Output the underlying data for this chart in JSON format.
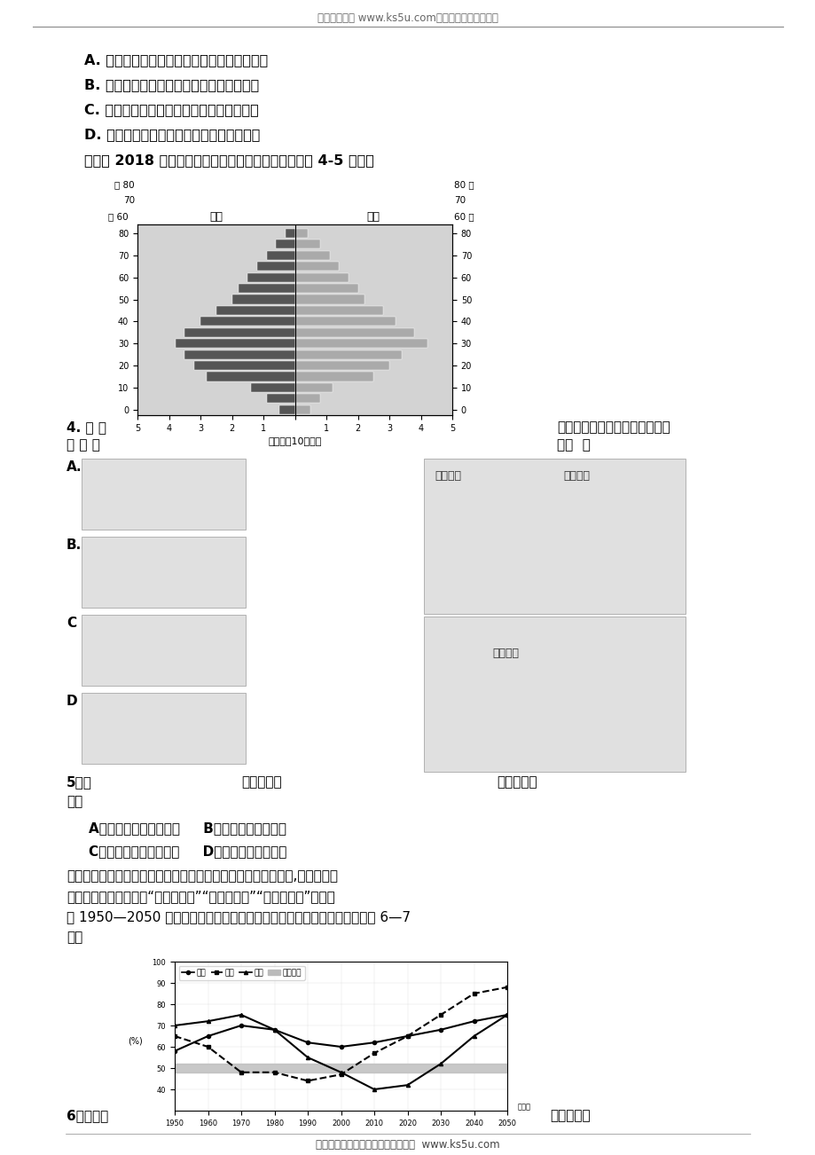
{
  "header_text": "高考资源网（ www.ks5u.com），您身边的高考专家",
  "footer_text": "欢迎广大教师踊跃来稿，稿酬丰厚。  www.ks5u.com",
  "options_ABCD": [
    "A. 山顶主要因气温高，蒸发量大，为灌木草原",
    "B. 坡面主要因坡度大，土层薄，为疏林草原",
    "C. 谷底主要因水土条件好，以中生乔木为主",
    "D. 光照差异导致谷底到山顶的植被分布差异"
  ],
  "pyramid_title": "下面为 2018 年天津市人口金字塔图，读图，完成下面 4-5 各题。",
  "pyramid_male_label": "男性",
  "pyramid_female_label": "女性",
  "pyramid_xlabel": "人口数（10万人）",
  "pyramid_age_ticks": [
    0,
    10,
    20,
    30,
    40,
    50,
    60,
    70,
    80
  ],
  "pyramid_x_ticks": [
    "5",
    "4",
    "3",
    "2",
    "1",
    "",
    "1",
    "2",
    "3",
    "4",
    "5"
  ],
  "pyramid_male_values": [
    0.5,
    0.9,
    1.4,
    2.8,
    3.2,
    3.5,
    3.8,
    3.5,
    3.0,
    2.5,
    2.0,
    1.8,
    1.5,
    1.2,
    0.9,
    0.6,
    0.3
  ],
  "pyramid_female_values": [
    0.5,
    0.8,
    1.2,
    2.5,
    3.0,
    3.4,
    4.2,
    3.8,
    3.2,
    2.8,
    2.2,
    2.0,
    1.7,
    1.4,
    1.1,
    0.8,
    0.4
  ],
  "q4_left1": "4. 材 料",
  "q4_left2": "相 符 的",
  "q4_right1": "体现的人口问题与下列漫画主题",
  "q4_right2": "是（  ）",
  "q5_line1": "5、结",
  "q5_mid": "合人口变化",
  "q5_right": "情况，当地",
  "q5_line2": "应（",
  "q5_options": [
    "A、提高劳动力落户门槛     B、推动养老产业发展",
    "C、严格控制人口的增长     D、进一步平衡性别比"
  ],
  "para_lines": [
    "　　人口负担系数是指非劳动年龄人口数与劳动年龄人口数之比,根据该系数",
    "可将人口发展阶段分为人口红利期、盈亏平衡期、人口负债期。下图",
    "为 1950—2050 年法国、日本和中国人口负担系数统计及预测图。据此完成 6—7",
    "题。"
  ],
  "line_chart": {
    "ylabel": "(%)",
    "ylim": [
      30,
      100
    ],
    "xlim": [
      1950,
      2050
    ],
    "xticks": [
      1950,
      1960,
      1970,
      1980,
      1990,
      2000,
      2010,
      2020,
      2030,
      2040,
      2050
    ],
    "yticks": [
      40,
      50,
      60,
      70,
      80,
      90,
      100
    ],
    "france_x": [
      1950,
      1960,
      1970,
      1980,
      1990,
      2000,
      2010,
      2020,
      2030,
      2040,
      2050
    ],
    "france_y": [
      58,
      65,
      70,
      68,
      62,
      60,
      62,
      65,
      68,
      72,
      75
    ],
    "japan_x": [
      1950,
      1960,
      1970,
      1980,
      1990,
      2000,
      2010,
      2020,
      2030,
      2040,
      2050
    ],
    "japan_y": [
      65,
      60,
      48,
      48,
      44,
      47,
      57,
      65,
      75,
      85,
      88
    ],
    "china_x": [
      1950,
      1960,
      1970,
      1980,
      1990,
      2000,
      2010,
      2020,
      2030,
      2040,
      2050
    ],
    "china_y": [
      70,
      72,
      75,
      68,
      55,
      48,
      40,
      42,
      52,
      65,
      75
    ],
    "balance_y_low": 48,
    "balance_y_high": 52,
    "legend_labels": [
      "法国",
      "日本",
      "中国",
      "盈亏平衡"
    ]
  },
  "q6_left": "6、下列说",
  "q6_right": "法正确的是",
  "bg_color": "#ffffff",
  "pyramid_bg": "#d3d3d3"
}
